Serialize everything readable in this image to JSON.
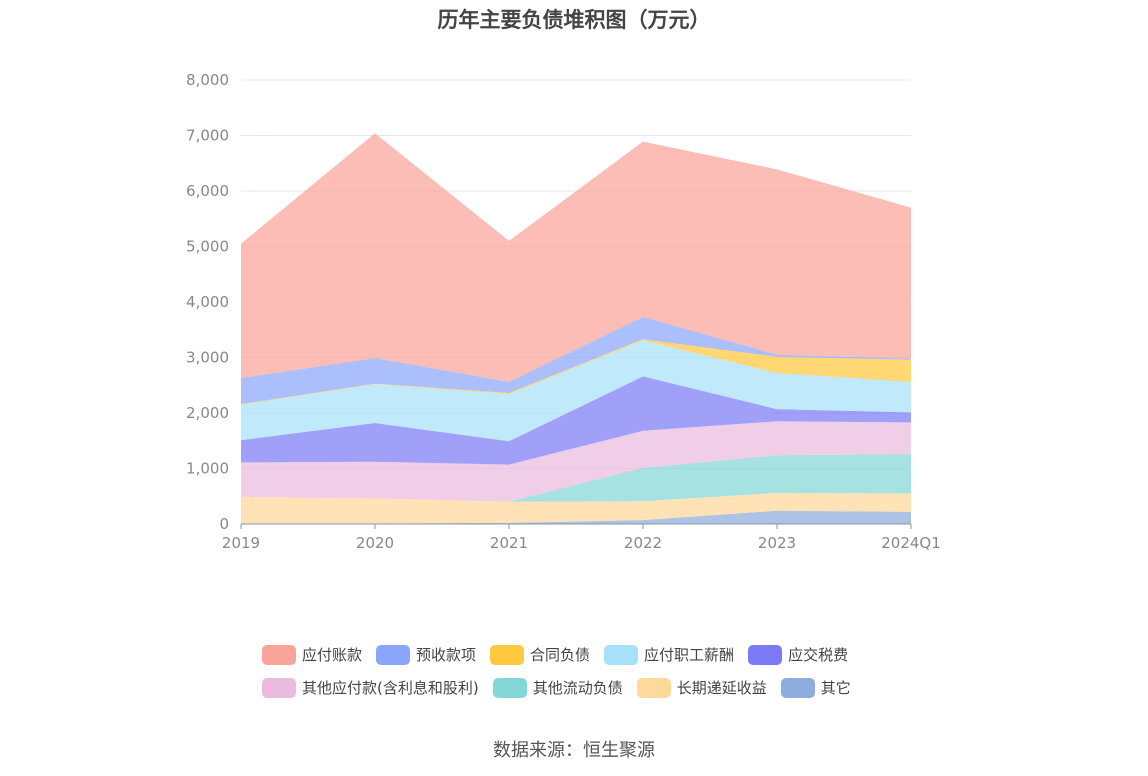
{
  "title": "历年主要负债堆积图（万元）",
  "source": "数据来源：恒生聚源",
  "chart_data": {
    "type": "area",
    "stacked": true,
    "x": [
      "2019",
      "2020",
      "2021",
      "2022",
      "2023",
      "2024Q1"
    ],
    "ylim": [
      0,
      8000
    ],
    "yticks": [
      "0",
      "1,000",
      "2,000",
      "3,000",
      "4,000",
      "5,000",
      "6,000",
      "7,000",
      "8,000"
    ],
    "grid": true,
    "legend_position": "bottom",
    "series": [
      {
        "name": "其它",
        "color": "#8eacdc",
        "values": [
          10,
          10,
          20,
          70,
          240,
          220
        ]
      },
      {
        "name": "长期递延收益",
        "color": "#ffd89b",
        "values": [
          480,
          450,
          380,
          340,
          320,
          330
        ]
      },
      {
        "name": "其他流动负债",
        "color": "#84d7d6",
        "values": [
          0,
          0,
          0,
          600,
          680,
          710
        ]
      },
      {
        "name": "其他应付款(含利息和股利)",
        "color": "#ebbbdf",
        "values": [
          620,
          660,
          670,
          670,
          610,
          570
        ]
      },
      {
        "name": "应交税费",
        "color": "#7b7bf5",
        "values": [
          400,
          700,
          420,
          980,
          220,
          180
        ]
      },
      {
        "name": "应付职工薪酬",
        "color": "#a7e0fa",
        "values": [
          640,
          700,
          850,
          650,
          650,
          550
        ]
      },
      {
        "name": "合同负债",
        "color": "#ffc93d",
        "values": [
          10,
          10,
          20,
          20,
          290,
          400
        ]
      },
      {
        "name": "预收款项",
        "color": "#89a6fb",
        "values": [
          470,
          460,
          200,
          400,
          40,
          20
        ]
      },
      {
        "name": "应付账款",
        "color": "#f9a49a",
        "values": [
          2420,
          4050,
          2540,
          3160,
          3340,
          2720
        ]
      }
    ]
  },
  "legend": {
    "row1": [
      {
        "label": "应付账款",
        "color": "#f9a49a"
      },
      {
        "label": "预收款项",
        "color": "#89a6fb"
      },
      {
        "label": "合同负债",
        "color": "#ffc93d"
      },
      {
        "label": "应付职工薪酬",
        "color": "#a7e0fa"
      },
      {
        "label": "应交税费",
        "color": "#7b7bf5"
      }
    ],
    "row2": [
      {
        "label": "其他应付款(含利息和股利)",
        "color": "#ebbbdf"
      },
      {
        "label": "其他流动负债",
        "color": "#84d7d6"
      },
      {
        "label": "长期递延收益",
        "color": "#ffd89b"
      },
      {
        "label": "其它",
        "color": "#8eacdc"
      }
    ]
  }
}
